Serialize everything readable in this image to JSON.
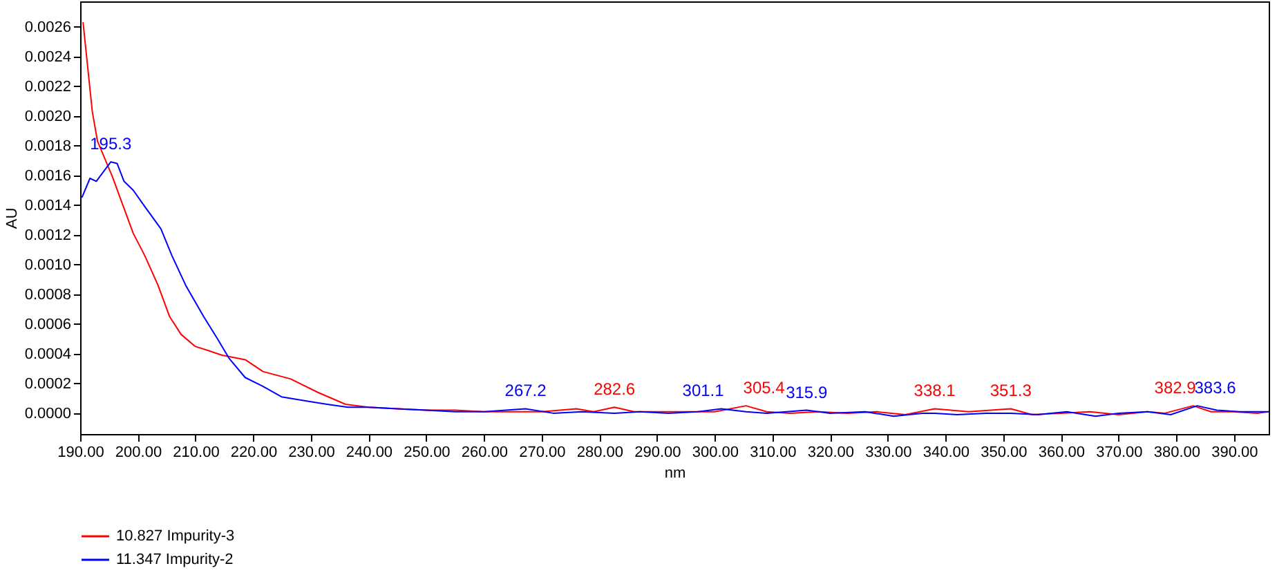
{
  "chart_data": {
    "type": "line",
    "xlabel": "nm",
    "ylabel": "AU",
    "legend": "bottom",
    "grid": false,
    "xlim": [
      190,
      396
    ],
    "ylim": [
      -0.00014,
      0.00277
    ],
    "xticks": [
      {
        "value": 190,
        "label": "190.00"
      },
      {
        "value": 200,
        "label": "200.00"
      },
      {
        "value": 210,
        "label": "210.00"
      },
      {
        "value": 220,
        "label": "220.00"
      },
      {
        "value": 230,
        "label": "230.00"
      },
      {
        "value": 240,
        "label": "240.00"
      },
      {
        "value": 250,
        "label": "250.00"
      },
      {
        "value": 260,
        "label": "260.00"
      },
      {
        "value": 270,
        "label": "270.00"
      },
      {
        "value": 280,
        "label": "280.00"
      },
      {
        "value": 290,
        "label": "290.00"
      },
      {
        "value": 300,
        "label": "300.00"
      },
      {
        "value": 310,
        "label": "310.00"
      },
      {
        "value": 320,
        "label": "320.00"
      },
      {
        "value": 330,
        "label": "330.00"
      },
      {
        "value": 340,
        "label": "340.00"
      },
      {
        "value": 350,
        "label": "350.00"
      },
      {
        "value": 360,
        "label": "360.00"
      },
      {
        "value": 370,
        "label": "370.00"
      },
      {
        "value": 380,
        "label": "380.00"
      },
      {
        "value": 390,
        "label": "390.00"
      }
    ],
    "yticks": [
      {
        "value": 0,
        "label": "0.0000"
      },
      {
        "value": 0.0002,
        "label": "0.0002"
      },
      {
        "value": 0.0004,
        "label": "0.0004"
      },
      {
        "value": 0.0006,
        "label": "0.0006"
      },
      {
        "value": 0.0008,
        "label": "0.0008"
      },
      {
        "value": 0.001,
        "label": "0.0010"
      },
      {
        "value": 0.0012,
        "label": "0.0012"
      },
      {
        "value": 0.0014,
        "label": "0.0014"
      },
      {
        "value": 0.0016,
        "label": "0.0016"
      },
      {
        "value": 0.0018,
        "label": "0.0018"
      },
      {
        "value": 0.002,
        "label": "0.0020"
      },
      {
        "value": 0.0022,
        "label": "0.0022"
      },
      {
        "value": 0.0024,
        "label": "0.0024"
      },
      {
        "value": 0.0026,
        "label": "0.0026"
      }
    ],
    "series": [
      {
        "name": "10.827 Impurity-3",
        "color": "#ff0000",
        "x": [
          190.5,
          192.1,
          193,
          195.6,
          197.2,
          199.2,
          201.2,
          203.5,
          205.5,
          207.5,
          209.9,
          212.3,
          214.6,
          218.6,
          221.7,
          226.5,
          231.2,
          236,
          240,
          245,
          250,
          255,
          260,
          265,
          270,
          276,
          279,
          282.6,
          286,
          290,
          295,
          300,
          305.4,
          309,
          313,
          318,
          323,
          328,
          333,
          338.1,
          344,
          351.3,
          355,
          360,
          365,
          370,
          375,
          378,
          382.9,
          386,
          390,
          394,
          396
        ],
        "values": [
          0.00263,
          0.00203,
          0.00183,
          0.00159,
          0.00142,
          0.00121,
          0.00106,
          0.00086,
          0.00065,
          0.00053,
          0.00045,
          0.00042,
          0.00039,
          0.00036,
          0.00028,
          0.00023,
          0.00014,
          6e-05,
          4e-05,
          3e-05,
          2e-05,
          2e-05,
          1e-05,
          1e-05,
          1e-05,
          3e-05,
          1e-05,
          4e-05,
          1e-05,
          1e-05,
          1e-05,
          1e-05,
          5e-05,
          1e-05,
          0,
          1e-05,
          0,
          1e-05,
          -1e-05,
          3e-05,
          1e-05,
          3e-05,
          -1e-05,
          0,
          1e-05,
          -1e-05,
          1e-05,
          0,
          5e-05,
          1e-05,
          1e-05,
          0,
          1e-05
        ]
      },
      {
        "name": "11.347 Impurity-2",
        "color": "#0000ff",
        "x": [
          190.3,
          191.7,
          192.8,
          195.3,
          196.4,
          197.6,
          199.2,
          201.2,
          204,
          205.9,
          208.3,
          211.4,
          213.8,
          215.8,
          218.6,
          221.7,
          224.9,
          229.6,
          232.8,
          236.4,
          240,
          245,
          250,
          255,
          260,
          267.2,
          272,
          277,
          282.6,
          287,
          292,
          297,
          301.1,
          305.4,
          309,
          315.9,
          320,
          326,
          331,
          336,
          338.1,
          342,
          347,
          351.3,
          356,
          361,
          366,
          370,
          375,
          379,
          383.6,
          387,
          391,
          396
        ],
        "values": [
          0.00145,
          0.00158,
          0.00156,
          0.00169,
          0.00168,
          0.00156,
          0.0015,
          0.00139,
          0.00124,
          0.00106,
          0.00086,
          0.00065,
          0.0005,
          0.00037,
          0.00024,
          0.00018,
          0.00011,
          8e-05,
          6e-05,
          4e-05,
          4e-05,
          3e-05,
          2e-05,
          1e-05,
          1e-05,
          3e-05,
          0,
          1e-05,
          0,
          1e-05,
          0,
          1e-05,
          3e-05,
          1e-05,
          0,
          2e-05,
          0,
          1e-05,
          -2e-05,
          0,
          0,
          -1e-05,
          0,
          0,
          -1e-05,
          1e-05,
          -2e-05,
          0,
          1e-05,
          -1e-05,
          5e-05,
          2e-05,
          1e-05,
          1e-05
        ]
      }
    ],
    "annotations": [
      {
        "text": "195.3",
        "x": 195.3,
        "y": 0.00169
      },
      {
        "text": "267.2",
        "x": 267.2,
        "y": 3e-05
      },
      {
        "text": "282.6",
        "x": 282.6,
        "y": 4e-05
      },
      {
        "text": "301.1",
        "x": 301.1,
        "y": 3e-05
      },
      {
        "text": "305.4",
        "x": 305.4,
        "y": 5e-05
      },
      {
        "text": "315.9",
        "x": 315.9,
        "y": 2e-05
      },
      {
        "text": "338.1",
        "x": 338.1,
        "y": 3e-05
      },
      {
        "text": "351.3",
        "x": 351.3,
        "y": 3e-05
      },
      {
        "text": "382.9",
        "x": 382.9,
        "y": 5e-05
      },
      {
        "text": "383.6",
        "x": 383.6,
        "y": 5e-05
      }
    ]
  }
}
